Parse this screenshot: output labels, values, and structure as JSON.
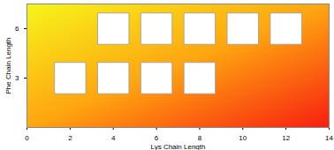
{
  "chart_data": {
    "type": "scatter",
    "xlabel": "Lys Chain Length",
    "ylabel": "Phe Chain Length",
    "x": [
      2,
      4,
      6,
      8,
      4,
      6,
      8,
      10,
      12
    ],
    "y": [
      3,
      3,
      3,
      3,
      6,
      6,
      6,
      6,
      6
    ],
    "xlim": [
      0,
      14
    ],
    "xticks": [
      0,
      2,
      4,
      6,
      8,
      10,
      12,
      14
    ],
    "ylim": [
      0,
      7.5
    ],
    "yticks": [
      3,
      6
    ],
    "marker": "square",
    "color": "#ffffff"
  }
}
